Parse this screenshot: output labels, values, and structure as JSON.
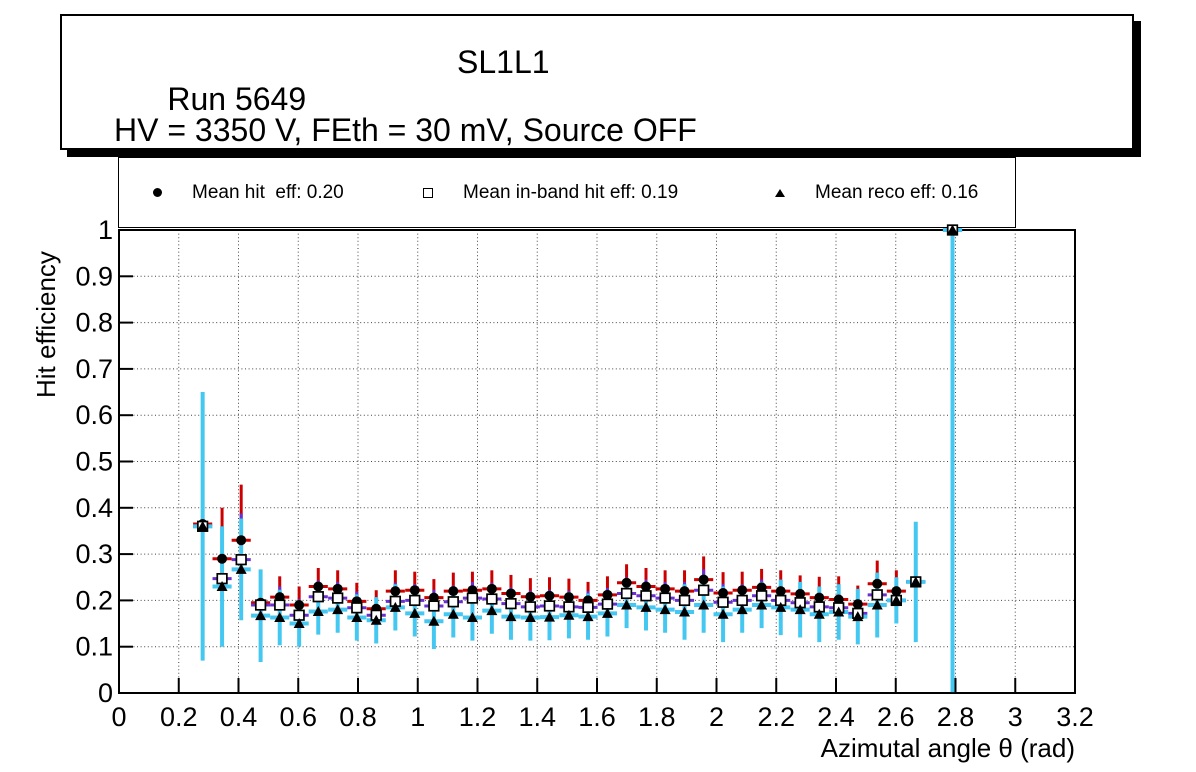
{
  "title_box": {
    "run": "Run 5649",
    "chamber": "SL1L1",
    "conditions": "HV = 3350 V, FEth = 30 mV, Source OFF"
  },
  "legend": {
    "entries": [
      {
        "marker": "filled-circle",
        "label": "Mean hit  eff: 0.20"
      },
      {
        "marker": "open-square",
        "label": "Mean in-band hit eff: 0.19"
      },
      {
        "marker": "filled-triangle",
        "label": "Mean reco eff: 0.16"
      }
    ]
  },
  "axes": {
    "x_title": "Azimutal angle θ (rad)",
    "y_title": "Hit efficiency",
    "x_ticks": [
      "0",
      "0.2",
      "0.4",
      "0.6",
      "0.8",
      "1",
      "1.2",
      "1.4",
      "1.6",
      "1.8",
      "2",
      "2.2",
      "2.4",
      "2.6",
      "2.8",
      "3",
      "3.2"
    ],
    "y_ticks": [
      "0",
      "0.1",
      "0.2",
      "0.3",
      "0.4",
      "0.5",
      "0.6",
      "0.7",
      "0.8",
      "0.9",
      "1"
    ]
  },
  "colors": {
    "marker": "#000000",
    "hit_error": "#cc0000",
    "inband_error": "#6a2fd0",
    "reco_error": "#44c8f2",
    "grid": "#444444",
    "frame": "#000000"
  },
  "chart_data": {
    "type": "scatter",
    "title": "",
    "xlabel": "Azimutal angle θ (rad)",
    "ylabel": "Hit efficiency",
    "xlim": [
      0,
      3.2
    ],
    "ylim": [
      0,
      1.0
    ],
    "grid": true,
    "legend_position": "top-strip",
    "x": [
      0.28,
      0.345,
      0.409,
      0.474,
      0.538,
      0.603,
      0.667,
      0.732,
      0.796,
      0.861,
      0.925,
      0.99,
      1.054,
      1.119,
      1.183,
      1.248,
      1.312,
      1.377,
      1.441,
      1.506,
      1.57,
      1.635,
      1.699,
      1.764,
      1.828,
      1.893,
      1.957,
      2.022,
      2.086,
      2.151,
      2.215,
      2.28,
      2.344,
      2.409,
      2.473,
      2.538,
      2.602,
      2.667,
      2.79
    ],
    "x_half_width": 0.032,
    "series": [
      {
        "name": "Mean hit eff",
        "mean": 0.2,
        "marker": "filled-circle",
        "marker_color": "#000000",
        "error_color": "#cc0000",
        "values": [
          0.365,
          0.29,
          0.33,
          0.195,
          0.207,
          0.19,
          0.23,
          0.225,
          0.198,
          0.182,
          0.22,
          0.222,
          0.206,
          0.22,
          0.222,
          0.225,
          0.215,
          0.208,
          0.21,
          0.207,
          0.2,
          0.212,
          0.238,
          0.23,
          0.225,
          0.22,
          0.245,
          0.216,
          0.222,
          0.228,
          0.22,
          0.214,
          0.206,
          0.202,
          0.192,
          0.236,
          0.22,
          0.24,
          1.0
        ],
        "errors": [
          0.04,
          0.11,
          0.12,
          0.05,
          0.045,
          0.04,
          0.04,
          0.04,
          0.04,
          0.04,
          0.045,
          0.04,
          0.04,
          0.04,
          0.04,
          0.04,
          0.04,
          0.04,
          0.04,
          0.04,
          0.04,
          0.04,
          0.04,
          0.04,
          0.04,
          0.045,
          0.05,
          0.045,
          0.04,
          0.04,
          0.045,
          0.04,
          0.045,
          0.05,
          0.04,
          0.05,
          0.045,
          0.04,
          0.0
        ]
      },
      {
        "name": "Mean in-band hit eff",
        "mean": 0.19,
        "marker": "open-square",
        "marker_color": "#000000",
        "error_color": "#6a2fd0",
        "values": [
          0.36,
          0.247,
          0.288,
          0.19,
          0.19,
          0.168,
          0.208,
          0.205,
          0.184,
          0.168,
          0.198,
          0.2,
          0.188,
          0.197,
          0.205,
          0.203,
          0.193,
          0.186,
          0.188,
          0.186,
          0.185,
          0.192,
          0.215,
          0.21,
          0.205,
          0.2,
          0.222,
          0.196,
          0.2,
          0.21,
          0.2,
          0.195,
          0.186,
          0.184,
          0.172,
          0.212,
          0.2,
          0.24,
          1.0
        ],
        "errors": [
          0.035,
          0.09,
          0.1,
          0.045,
          0.04,
          0.035,
          0.035,
          0.035,
          0.035,
          0.035,
          0.04,
          0.035,
          0.035,
          0.035,
          0.035,
          0.035,
          0.035,
          0.035,
          0.035,
          0.035,
          0.035,
          0.035,
          0.035,
          0.035,
          0.035,
          0.04,
          0.045,
          0.04,
          0.035,
          0.035,
          0.04,
          0.035,
          0.04,
          0.045,
          0.035,
          0.045,
          0.04,
          0.035,
          0.0
        ]
      },
      {
        "name": "Mean reco eff",
        "mean": 0.16,
        "marker": "filled-triangle",
        "marker_color": "#000000",
        "error_color": "#44c8f2",
        "values": [
          0.36,
          0.23,
          0.267,
          0.167,
          0.163,
          0.15,
          0.176,
          0.18,
          0.163,
          0.157,
          0.185,
          0.172,
          0.155,
          0.17,
          0.163,
          0.178,
          0.165,
          0.163,
          0.164,
          0.168,
          0.165,
          0.172,
          0.19,
          0.185,
          0.18,
          0.175,
          0.19,
          0.17,
          0.18,
          0.19,
          0.185,
          0.18,
          0.17,
          0.175,
          0.165,
          0.19,
          0.2,
          0.24,
          1.0
        ],
        "errors": [
          0.29,
          0.13,
          0.11,
          0.1,
          0.06,
          0.05,
          0.05,
          0.05,
          0.05,
          0.05,
          0.05,
          0.05,
          0.06,
          0.05,
          0.05,
          0.05,
          0.05,
          0.05,
          0.05,
          0.05,
          0.05,
          0.05,
          0.05,
          0.05,
          0.05,
          0.06,
          0.06,
          0.06,
          0.05,
          0.05,
          0.06,
          0.06,
          0.06,
          0.06,
          0.06,
          0.07,
          0.05,
          0.13,
          1.0
        ]
      }
    ]
  }
}
